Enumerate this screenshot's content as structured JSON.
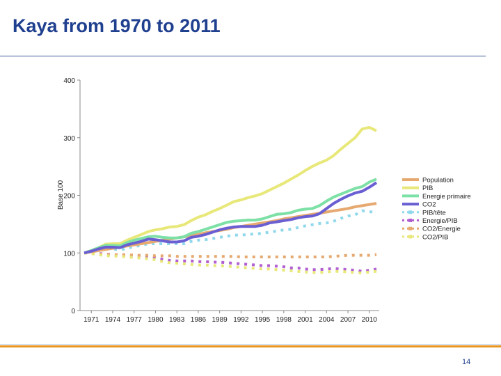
{
  "page": {
    "title": "Kaya from 1970 to 2011",
    "page_number": "14"
  },
  "colors": {
    "title": "#1f3f8f",
    "accent_rule": "#e8951d"
  },
  "chart_data": {
    "type": "line",
    "title": "",
    "xlabel": "",
    "ylabel": "Base 100",
    "ylim": [
      0,
      400
    ],
    "yticks": [
      0,
      100,
      200,
      300,
      400
    ],
    "x": [
      1970,
      1971,
      1972,
      1973,
      1974,
      1975,
      1976,
      1977,
      1978,
      1979,
      1980,
      1981,
      1982,
      1983,
      1984,
      1985,
      1986,
      1987,
      1988,
      1989,
      1990,
      1991,
      1992,
      1993,
      1994,
      1995,
      1996,
      1997,
      1998,
      1999,
      2000,
      2001,
      2002,
      2003,
      2004,
      2005,
      2006,
      2007,
      2008,
      2009,
      2010,
      2011
    ],
    "xticks": [
      1971,
      1974,
      1977,
      1980,
      1983,
      1986,
      1989,
      1992,
      1995,
      1998,
      2001,
      2004,
      2007,
      2010
    ],
    "legend_position": "right",
    "series": [
      {
        "name": "Population",
        "color": "#e6a970",
        "style": "solid",
        "values": [
          100,
          102,
          104,
          106,
          108,
          110,
          112,
          114,
          116,
          118,
          120,
          122,
          124,
          126,
          128,
          130,
          132,
          135,
          137,
          139,
          141,
          144,
          146,
          148,
          150,
          152,
          154,
          156,
          159,
          161,
          163,
          165,
          167,
          169,
          171,
          173,
          175,
          177,
          180,
          182,
          184,
          186
        ]
      },
      {
        "name": "PIB",
        "color": "#e8e87a",
        "style": "solid",
        "values": [
          100,
          104,
          109,
          115,
          116,
          116,
          122,
          127,
          132,
          137,
          140,
          142,
          145,
          146,
          149,
          156,
          162,
          166,
          172,
          177,
          183,
          189,
          192,
          196,
          199,
          203,
          209,
          215,
          221,
          228,
          235,
          243,
          250,
          256,
          261,
          269,
          280,
          290,
          300,
          315,
          318,
          312
        ]
      },
      {
        "name": "Energie primaire",
        "color": "#7de0a6",
        "style": "solid",
        "values": [
          100,
          104,
          109,
          113,
          113,
          112,
          118,
          122,
          125,
          128,
          129,
          127,
          126,
          126,
          128,
          134,
          137,
          141,
          145,
          149,
          153,
          155,
          156,
          157,
          157,
          159,
          163,
          167,
          168,
          170,
          174,
          176,
          177,
          182,
          190,
          197,
          202,
          207,
          212,
          215,
          223,
          228
        ]
      },
      {
        "name": "CO2",
        "color": "#6a5fd2",
        "style": "solid",
        "values": [
          100,
          103,
          107,
          110,
          110,
          109,
          114,
          117,
          120,
          124,
          123,
          121,
          119,
          119,
          121,
          127,
          129,
          132,
          136,
          140,
          143,
          145,
          146,
          146,
          146,
          148,
          152,
          154,
          156,
          158,
          161,
          163,
          164,
          168,
          177,
          186,
          193,
          199,
          204,
          207,
          214,
          222
        ]
      },
      {
        "name": "PIB/tête",
        "color": "#8fd8ec",
        "style": "dotted",
        "values": [
          100,
          102,
          105,
          108,
          107,
          105,
          108,
          111,
          113,
          116,
          116,
          116,
          116,
          116,
          116,
          120,
          122,
          123,
          125,
          127,
          129,
          131,
          131,
          132,
          133,
          134,
          136,
          138,
          140,
          141,
          144,
          147,
          149,
          151,
          152,
          155,
          160,
          164,
          166,
          173,
          172,
          169
        ]
      },
      {
        "name": "Energie/PIB",
        "color": "#b25fd0",
        "style": "dotted",
        "values": [
          100,
          100,
          99,
          98,
          97,
          96,
          96,
          95,
          94,
          93,
          92,
          89,
          87,
          86,
          86,
          86,
          85,
          85,
          84,
          84,
          83,
          82,
          81,
          80,
          79,
          78,
          78,
          77,
          76,
          74,
          74,
          72,
          71,
          71,
          72,
          73,
          72,
          71,
          70,
          68,
          70,
          72
        ]
      },
      {
        "name": "CO2/Energie",
        "color": "#e6a970",
        "style": "dotted",
        "values": [
          100,
          99,
          98,
          97,
          97,
          97,
          97,
          96,
          96,
          96,
          95,
          95,
          95,
          94,
          94,
          94,
          94,
          94,
          94,
          94,
          94,
          94,
          93,
          93,
          93,
          93,
          93,
          93,
          93,
          93,
          93,
          93,
          93,
          93,
          93,
          94,
          95,
          96,
          96,
          96,
          96,
          97
        ]
      },
      {
        "name": "CO2/PIB",
        "color": "#e8e87a",
        "style": "dotted",
        "values": [
          100,
          99,
          97,
          95,
          95,
          94,
          93,
          92,
          91,
          90,
          88,
          85,
          83,
          82,
          81,
          80,
          79,
          79,
          78,
          78,
          77,
          76,
          75,
          74,
          73,
          72,
          72,
          71,
          70,
          69,
          68,
          67,
          66,
          66,
          67,
          68,
          68,
          67,
          66,
          65,
          67,
          68
        ]
      }
    ]
  }
}
